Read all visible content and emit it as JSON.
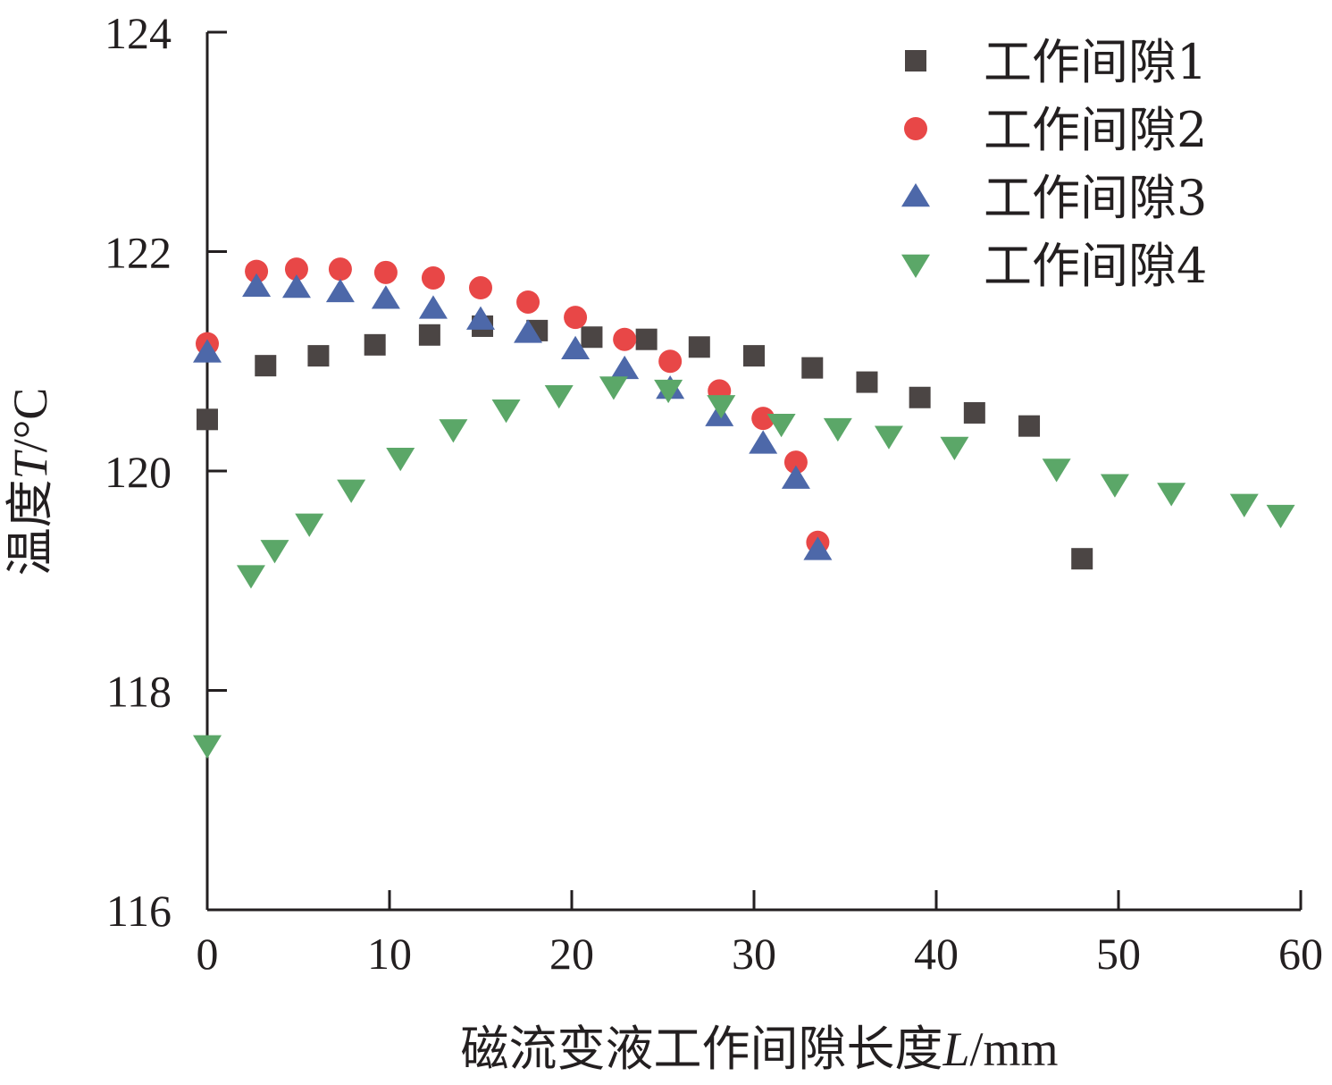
{
  "chart_data": {
    "type": "scatter",
    "xlabel": "磁流变液工作间隙长度",
    "xlabel_var": "L",
    "xlabel_unit": "/mm",
    "ylabel": "温度",
    "ylabel_var": "T",
    "ylabel_unit": "/°C",
    "xlim": [
      0,
      60
    ],
    "ylim": [
      116,
      124
    ],
    "xticks": [
      0,
      10,
      20,
      30,
      40,
      50,
      60
    ],
    "yticks": [
      116,
      118,
      120,
      122,
      124
    ],
    "legend_position": "top-right",
    "grid": false,
    "series": [
      {
        "name": "工作间隙1",
        "marker": "square",
        "color": "#4b4544",
        "x": [
          0,
          3.2,
          6.1,
          9.2,
          12.2,
          15.1,
          18.1,
          21.1,
          24.1,
          27.0,
          30.0,
          33.2,
          36.2,
          39.1,
          42.1,
          45.1,
          48.0
        ],
        "y": [
          120.47,
          120.96,
          121.05,
          121.15,
          121.24,
          121.32,
          121.28,
          121.22,
          121.2,
          121.13,
          121.05,
          120.94,
          120.81,
          120.67,
          120.53,
          120.41,
          119.2
        ]
      },
      {
        "name": "工作间隙2",
        "marker": "circle",
        "color": "#e84747",
        "x": [
          0,
          2.7,
          4.9,
          7.3,
          9.8,
          12.4,
          15.0,
          17.6,
          20.2,
          22.9,
          25.4,
          28.1,
          30.5,
          32.3,
          33.5
        ],
        "y": [
          121.16,
          121.82,
          121.84,
          121.84,
          121.81,
          121.76,
          121.67,
          121.54,
          121.4,
          121.2,
          121.0,
          120.73,
          120.48,
          120.08,
          119.35
        ]
      },
      {
        "name": "工作间隙3",
        "marker": "triangle-up",
        "color": "#4d68a9",
        "x": [
          0,
          2.7,
          4.9,
          7.3,
          9.8,
          12.4,
          15.0,
          17.6,
          20.2,
          22.9,
          25.4,
          28.1,
          30.5,
          32.3,
          33.5
        ],
        "y": [
          121.08,
          121.68,
          121.67,
          121.63,
          121.57,
          121.48,
          121.38,
          121.26,
          121.11,
          120.93,
          120.75,
          120.5,
          120.25,
          119.93,
          119.28
        ]
      },
      {
        "name": "工作间隙4",
        "marker": "triangle-down",
        "color": "#5ba768",
        "x": [
          0,
          2.4,
          3.7,
          5.6,
          7.9,
          10.6,
          13.5,
          16.4,
          19.3,
          22.3,
          25.3,
          28.2,
          31.5,
          34.6,
          37.4,
          41.0,
          46.6,
          49.8,
          52.9,
          56.9,
          58.9
        ],
        "y": [
          117.5,
          119.05,
          119.28,
          119.52,
          119.83,
          120.12,
          120.38,
          120.56,
          120.69,
          120.77,
          120.74,
          120.6,
          120.43,
          120.39,
          120.32,
          120.22,
          120.02,
          119.88,
          119.8,
          119.7,
          119.6
        ]
      }
    ]
  }
}
